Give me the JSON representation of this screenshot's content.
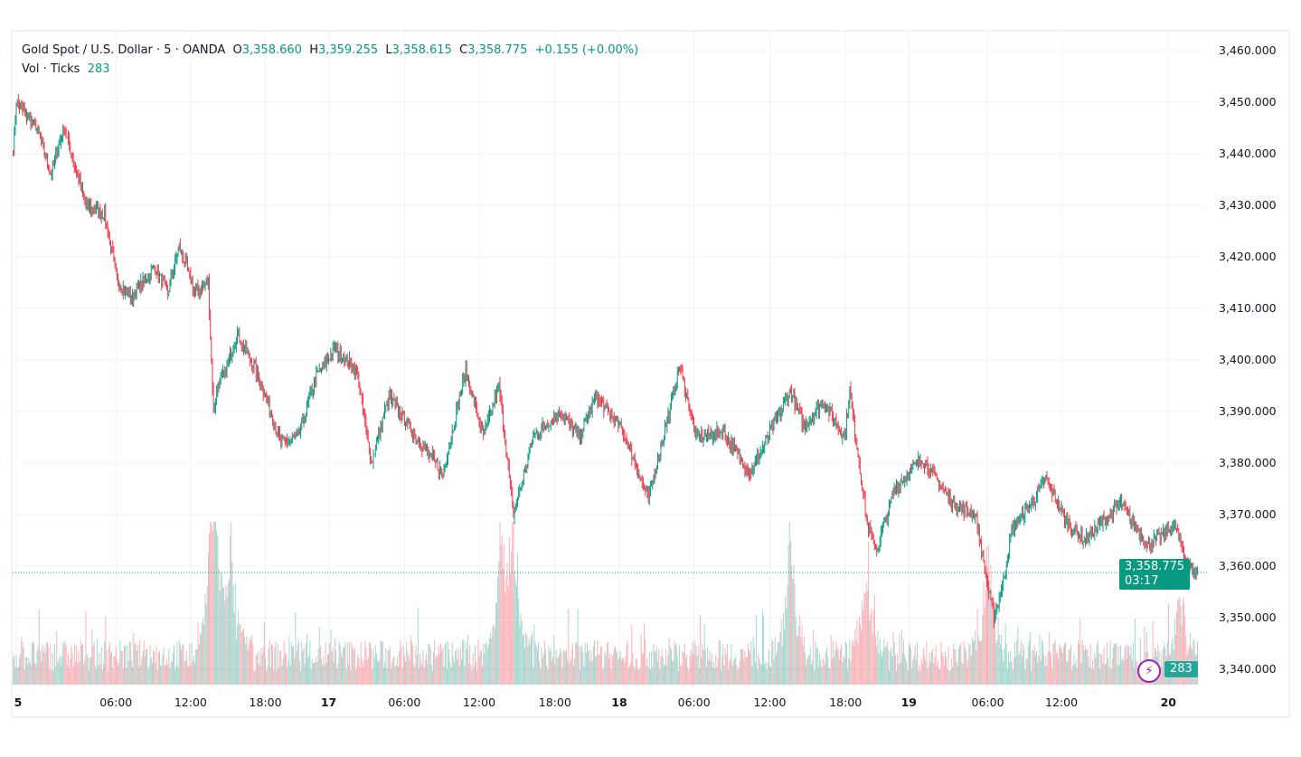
{
  "header": {
    "symbol": "Gold Spot / U.S. Dollar · 5 · OANDA",
    "o_label": "O",
    "o": "3,358.660",
    "h_label": "H",
    "h": "3,359.255",
    "l_label": "L",
    "l": "3,358.615",
    "c_label": "C",
    "c": "3,358.775",
    "change": "+0.155 (+0.00%)",
    "vol_label": "Vol · Ticks",
    "vol": "283"
  },
  "last_price": {
    "price": "3,358.775",
    "countdown": "03:17",
    "volume": "283"
  },
  "colors": {
    "up": "#089981",
    "down": "#f23645"
  },
  "chart_data": {
    "type": "candlestick",
    "title": "Gold Spot / U.S. Dollar · 5 · OANDA",
    "ylim": [
      3340,
      3460
    ],
    "yticks": [
      "3,460.000",
      "3,450.000",
      "3,440.000",
      "3,430.000",
      "3,420.000",
      "3,410.000",
      "3,400.000",
      "3,390.000",
      "3,380.000",
      "3,370.000",
      "3,360.000",
      "3,350.000",
      "3,340.000"
    ],
    "ytick_values": [
      3460,
      3450,
      3440,
      3430,
      3420,
      3410,
      3400,
      3390,
      3380,
      3370,
      3360,
      3350,
      3340
    ],
    "bar_count": 1142,
    "xticks": [
      {
        "bar": 3,
        "label": "5",
        "bold": true
      },
      {
        "bar": 99,
        "label": "06:00"
      },
      {
        "bar": 171,
        "label": "12:00"
      },
      {
        "bar": 243,
        "label": "18:00"
      },
      {
        "bar": 304,
        "label": "17",
        "bold": true
      },
      {
        "bar": 377,
        "label": "06:00"
      },
      {
        "bar": 449,
        "label": "12:00"
      },
      {
        "bar": 522,
        "label": "18:00"
      },
      {
        "bar": 584,
        "label": "18",
        "bold": true
      },
      {
        "bar": 656,
        "label": "06:00"
      },
      {
        "bar": 729,
        "label": "12:00"
      },
      {
        "bar": 802,
        "label": "18:00"
      },
      {
        "bar": 863,
        "label": "19",
        "bold": true
      },
      {
        "bar": 939,
        "label": "06:00"
      },
      {
        "bar": 1010,
        "label": "12:00"
      },
      {
        "bar": 1113,
        "label": "20",
        "bold": true
      }
    ],
    "price_path": [
      [
        0,
        3441
      ],
      [
        3,
        3450
      ],
      [
        23,
        3445
      ],
      [
        36,
        3436
      ],
      [
        49,
        3445
      ],
      [
        70,
        3430
      ],
      [
        88,
        3428
      ],
      [
        101,
        3415
      ],
      [
        114,
        3412
      ],
      [
        136,
        3418
      ],
      [
        149,
        3413
      ],
      [
        160,
        3422
      ],
      [
        175,
        3413
      ],
      [
        188,
        3415
      ],
      [
        193,
        3390
      ],
      [
        197,
        3395
      ],
      [
        205,
        3398
      ],
      [
        216,
        3405
      ],
      [
        236,
        3397
      ],
      [
        258,
        3384
      ],
      [
        275,
        3385
      ],
      [
        292,
        3397
      ],
      [
        310,
        3402
      ],
      [
        331,
        3398
      ],
      [
        345,
        3380
      ],
      [
        362,
        3393
      ],
      [
        388,
        3385
      ],
      [
        414,
        3378
      ],
      [
        436,
        3398
      ],
      [
        453,
        3385
      ],
      [
        468,
        3395
      ],
      [
        482,
        3370
      ],
      [
        501,
        3385
      ],
      [
        527,
        3390
      ],
      [
        545,
        3385
      ],
      [
        562,
        3393
      ],
      [
        588,
        3386
      ],
      [
        612,
        3373
      ],
      [
        632,
        3390
      ],
      [
        642,
        3399
      ],
      [
        658,
        3385
      ],
      [
        684,
        3386
      ],
      [
        710,
        3378
      ],
      [
        727,
        3385
      ],
      [
        749,
        3394
      ],
      [
        762,
        3387
      ],
      [
        780,
        3392
      ],
      [
        801,
        3385
      ],
      [
        806,
        3394
      ],
      [
        823,
        3368
      ],
      [
        832,
        3363
      ],
      [
        849,
        3375
      ],
      [
        875,
        3381
      ],
      [
        906,
        3372
      ],
      [
        927,
        3370
      ],
      [
        940,
        3355
      ],
      [
        945,
        3350
      ],
      [
        954,
        3357
      ],
      [
        962,
        3367
      ],
      [
        984,
        3373
      ],
      [
        995,
        3377
      ],
      [
        1014,
        3369
      ],
      [
        1032,
        3365
      ],
      [
        1067,
        3372
      ],
      [
        1093,
        3364
      ],
      [
        1119,
        3368
      ],
      [
        1132,
        3360
      ],
      [
        1141,
        3358.775
      ]
    ],
    "volume_spikes": [
      [
        193,
        300
      ],
      [
        482,
        220
      ],
      [
        749,
        190
      ],
      [
        823,
        160
      ],
      [
        940,
        150
      ],
      [
        210,
        150
      ],
      [
        470,
        170
      ],
      [
        1125,
        100
      ]
    ]
  }
}
